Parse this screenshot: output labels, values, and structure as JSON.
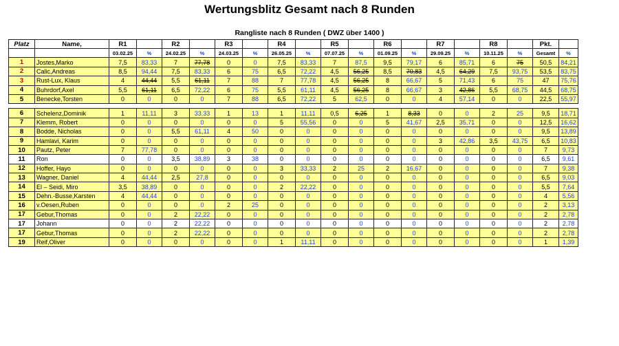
{
  "title": "Wertungsblitz  Gesamt nach 8 Runden",
  "subtitle": "Rangliste nach 8 Runden  ( DWZ über 1400 )",
  "headers": [
    "Platz",
    "Name,",
    "R1",
    "",
    "R2",
    "",
    "R3",
    "",
    "R4",
    "",
    "R5",
    "",
    "R6",
    "",
    "R7",
    "",
    "R8",
    "",
    "Pkt.",
    ""
  ],
  "dates": [
    "",
    "",
    "03.02.25",
    "%",
    "24.02.25",
    "%",
    "24.03.25",
    "%",
    "26.05.25",
    "%",
    "07.07.25",
    "%",
    "01.09.25",
    "%",
    "29.09.25",
    "%",
    "10.11.25",
    "%",
    "Gesamt",
    "%"
  ],
  "group1": [
    {
      "place": "1",
      "name": "Jostes,Marko",
      "cells": [
        "7,5",
        "83,33",
        "7",
        "77,78",
        "0",
        "0",
        "7,5",
        "83,33",
        "7",
        "87,5",
        "9,5",
        "79,17",
        "6",
        "85,71",
        "6",
        "75",
        "50,5",
        "84,21"
      ],
      "strike": [
        3,
        15
      ]
    },
    {
      "place": "2",
      "name": "Calic,Andreas",
      "cells": [
        "8,5",
        "94,44",
        "7,5",
        "83,33",
        "6",
        "75",
        "6,5",
        "72,22",
        "4,5",
        "56,25",
        "8,5",
        "70,83",
        "4,5",
        "64,29",
        "7,5",
        "93,75",
        "53,5",
        "83,75"
      ],
      "strike": [
        9,
        11,
        13
      ]
    },
    {
      "place": "3",
      "name": "Rust-Lux, Klaus",
      "cells": [
        "4",
        "44,44",
        "5,5",
        "61,11",
        "7",
        "88",
        "7",
        "77,78",
        "4,5",
        "56,25",
        "8",
        "66,67",
        "5",
        "71,43",
        "6",
        "75",
        "47",
        "75,76"
      ],
      "strike": [
        1,
        3,
        9
      ]
    },
    {
      "place": "4",
      "name": "Buhrdorf,Axel",
      "cells": [
        "5,5",
        "61,11",
        "6,5",
        "72,22",
        "6",
        "75",
        "5,5",
        "61,11",
        "4,5",
        "56,25",
        "8",
        "66,67",
        "3",
        "42,86",
        "5,5",
        "68,75",
        "44,5",
        "68,75"
      ],
      "strike": [
        1,
        9,
        13
      ]
    },
    {
      "place": "5",
      "name": "Benecke,Torsten",
      "cells": [
        "0",
        "0",
        "0",
        "0",
        "7",
        "88",
        "6,5",
        "72,22",
        "5",
        "62,5",
        "0",
        "0",
        "4",
        "57,14",
        "0",
        "0",
        "22,5",
        "55,97"
      ],
      "strike": []
    }
  ],
  "group2": [
    {
      "place": "6",
      "name": "Schelenz,Dominik",
      "cells": [
        "1",
        "11,11",
        "3",
        "33,33",
        "1",
        "13",
        "1",
        "11,11",
        "0,5",
        "6,25",
        "1",
        "8,33",
        "0",
        "0",
        "2",
        "25",
        "9,5",
        "18,71"
      ],
      "strike": [
        9,
        11
      ],
      "white": false
    },
    {
      "place": "7",
      "name": "Klemm, Robert",
      "cells": [
        "0",
        "0",
        "0",
        "0",
        "0",
        "0",
        "5",
        "55,56",
        "0",
        "0",
        "5",
        "41,67",
        "2,5",
        "35,71",
        "0",
        "0",
        "12,5",
        "16,62"
      ],
      "strike": [],
      "white": false
    },
    {
      "place": "8",
      "name": "Bodde, Nicholas",
      "cells": [
        "0",
        "0",
        "5,5",
        "61,11",
        "4",
        "50",
        "0",
        "0",
        "0",
        "0",
        "0",
        "0",
        "0",
        "0",
        "0",
        "0",
        "9,5",
        "13,89"
      ],
      "strike": [],
      "white": false
    },
    {
      "place": "9",
      "name": "Hamlavi, Karim",
      "cells": [
        "0",
        "0",
        "0",
        "0",
        "0",
        "0",
        "0",
        "0",
        "0",
        "0",
        "0",
        "0",
        "3",
        "42,86",
        "3,5",
        "43,75",
        "6,5",
        "10,83"
      ],
      "strike": [],
      "white": false
    },
    {
      "place": "10",
      "name": "Pautz, Peter",
      "cells": [
        "7",
        "77,78",
        "0",
        "0",
        "0",
        "0",
        "0",
        "0",
        "0",
        "0",
        "0",
        "0",
        "0",
        "0",
        "0",
        "0",
        "7",
        "9,73"
      ],
      "strike": [],
      "white": false
    },
    {
      "place": "11",
      "name": "Ron",
      "cells": [
        "0",
        "0",
        "3,5",
        "38,89",
        "3",
        "38",
        "0",
        "0",
        "0",
        "0",
        "0",
        "0",
        "0",
        "0",
        "0",
        "0",
        "6,5",
        "9,61"
      ],
      "strike": [],
      "white": true
    },
    {
      "place": "12",
      "name": "Hoffer, Hayo",
      "cells": [
        "0",
        "0",
        "0",
        "0",
        "0",
        "0",
        "3",
        "33,33",
        "2",
        "25",
        "2",
        "16,67",
        "0",
        "0",
        "0",
        "0",
        "7",
        "9,38"
      ],
      "strike": [],
      "white": false
    },
    {
      "place": "13",
      "name": "Wagner, Daniel",
      "cells": [
        "4",
        "44,44",
        "2,5",
        "27,8",
        "0",
        "0",
        "0",
        "0",
        "0",
        "0",
        "0",
        "0",
        "0",
        "0",
        "0",
        "0",
        "6,5",
        "9,03"
      ],
      "strike": [],
      "white": false
    },
    {
      "place": "14",
      "name": "El – Seidi, Miro",
      "cells": [
        "3,5",
        "38,89",
        "0",
        "0",
        "0",
        "0",
        "2",
        "22,22",
        "0",
        "0",
        "0",
        "0",
        "0",
        "0",
        "0",
        "0",
        "5,5",
        "7,64"
      ],
      "strike": [],
      "white": false
    },
    {
      "place": "15",
      "name": "Dehn.-Busse,Karsten",
      "cells": [
        "4",
        "44,44",
        "0",
        "0",
        "0",
        "0",
        "0",
        "0",
        "0",
        "0",
        "0",
        "0",
        "0",
        "0",
        "0",
        "0",
        "4",
        "5,56"
      ],
      "strike": [],
      "white": false
    },
    {
      "place": "16",
      "name": "v.Oesen,Ruben",
      "cells": [
        "0",
        "0",
        "0",
        "0",
        "2",
        "25",
        "0",
        "0",
        "0",
        "0",
        "0",
        "0",
        "0",
        "0",
        "0",
        "0",
        "2",
        "3,13"
      ],
      "strike": [],
      "white": false
    },
    {
      "place": "17",
      "name": "Gebur,Thomas",
      "cells": [
        "0",
        "0",
        "2",
        "22,22",
        "0",
        "0",
        "0",
        "0",
        "0",
        "0",
        "0",
        "0",
        "0",
        "0",
        "0",
        "0",
        "2",
        "2,78"
      ],
      "strike": [],
      "white": false
    },
    {
      "place": "17",
      "name": "Johann",
      "cells": [
        "0",
        "0",
        "2",
        "22,22",
        "0",
        "0",
        "0",
        "0",
        "0",
        "0",
        "0",
        "0",
        "0",
        "0",
        "0",
        "0",
        "2",
        "2,78"
      ],
      "strike": [],
      "white": true
    },
    {
      "place": "17",
      "name": "Gebur,Thomas",
      "cells": [
        "0",
        "0",
        "2",
        "22,22",
        "0",
        "0",
        "0",
        "0",
        "0",
        "0",
        "0",
        "0",
        "0",
        "0",
        "0",
        "0",
        "2",
        "2,78"
      ],
      "strike": [],
      "white": false
    },
    {
      "place": "19",
      "name": "Reif,Oliver",
      "cells": [
        "0",
        "0",
        "0",
        "0",
        "0",
        "0",
        "1",
        "11,11",
        "0",
        "0",
        "0",
        "0",
        "0",
        "0",
        "0",
        "0",
        "1",
        "1,39"
      ],
      "strike": [],
      "white": false
    }
  ]
}
